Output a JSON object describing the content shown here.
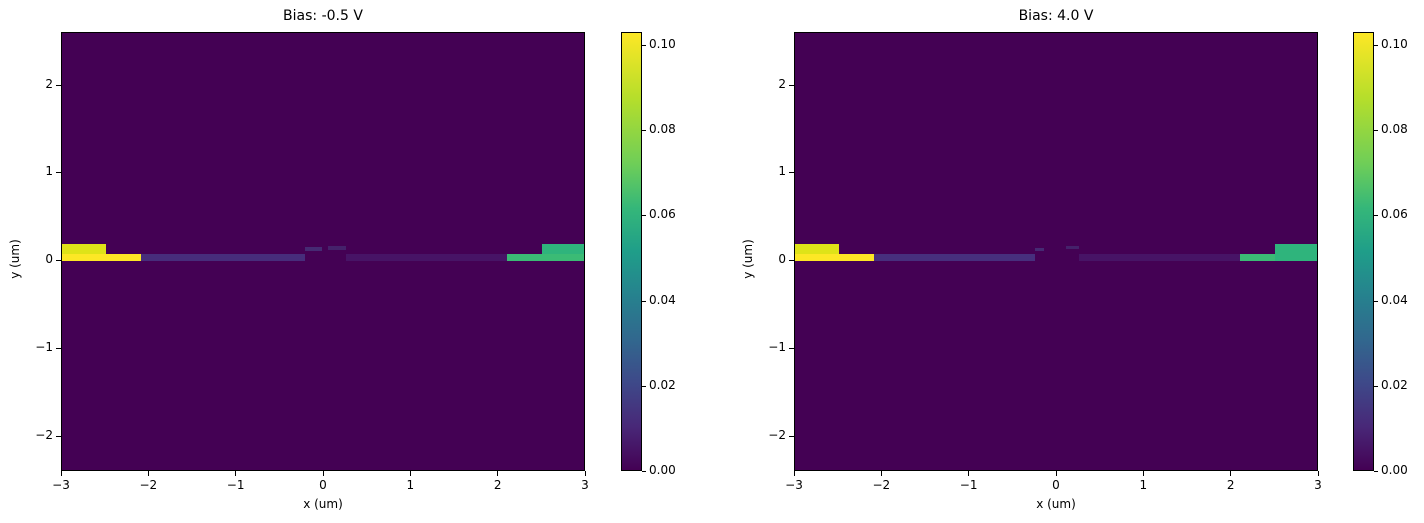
{
  "chart_data": [
    {
      "type": "heatmap",
      "title": "Bias: -0.5 V",
      "xlabel": "x (um)",
      "ylabel": "y (um)",
      "xlim": [
        -3,
        3
      ],
      "ylim": [
        -2.4,
        2.6
      ],
      "xticks": [
        "−3",
        "−2",
        "−1",
        "0",
        "1",
        "2",
        "3"
      ],
      "yticks": [
        "−2",
        "−1",
        "0",
        "1",
        "2"
      ],
      "colorbar": {
        "min": 0.0,
        "max": 0.103,
        "ticks": [
          "0.00",
          "0.02",
          "0.04",
          "0.06",
          "0.08",
          "0.10"
        ],
        "colormap": "viridis"
      },
      "regions": [
        {
          "name": "left-contact-top",
          "x": [
            -3.0,
            -2.5
          ],
          "y": [
            0.08,
            0.2
          ],
          "value": 0.098,
          "color": "#dfe318"
        },
        {
          "name": "left-contact-bottom",
          "x": [
            -3.0,
            -2.1
          ],
          "y": [
            0.0,
            0.08
          ],
          "value": 0.103,
          "color": "#fde725"
        },
        {
          "name": "slab-left",
          "x": [
            -2.1,
            -0.22
          ],
          "y": [
            0.0,
            0.08
          ],
          "value": 0.015,
          "color": "#472d7b"
        },
        {
          "name": "ridge-left-step",
          "x": [
            -0.22,
            -0.02
          ],
          "y": [
            0.12,
            0.16
          ],
          "value": 0.01,
          "color": "#462a73"
        },
        {
          "name": "ridge-right-step",
          "x": [
            0.05,
            0.25
          ],
          "y": [
            0.13,
            0.17
          ],
          "value": 0.008,
          "color": "#45226b"
        },
        {
          "name": "slab-right",
          "x": [
            0.25,
            2.1
          ],
          "y": [
            0.0,
            0.08
          ],
          "value": 0.008,
          "color": "#471466"
        },
        {
          "name": "right-contact-bottom",
          "x": [
            2.1,
            3.0
          ],
          "y": [
            0.0,
            0.08
          ],
          "value": 0.072,
          "color": "#3bbb75"
        },
        {
          "name": "right-contact-top",
          "x": [
            2.5,
            3.0
          ],
          "y": [
            0.08,
            0.2
          ],
          "value": 0.068,
          "color": "#2fb47c"
        }
      ],
      "background_value": 0.0
    },
    {
      "type": "heatmap",
      "title": "Bias: 4.0 V",
      "xlabel": "x (um)",
      "ylabel": "y (um)",
      "xlim": [
        -3,
        3
      ],
      "ylim": [
        -2.4,
        2.6
      ],
      "xticks": [
        "−3",
        "−2",
        "−1",
        "0",
        "1",
        "2",
        "3"
      ],
      "yticks": [
        "−2",
        "−1",
        "0",
        "1",
        "2"
      ],
      "colorbar": {
        "min": 0.0,
        "max": 0.103,
        "ticks": [
          "0.00",
          "0.02",
          "0.04",
          "0.06",
          "0.08",
          "0.10"
        ],
        "colormap": "viridis"
      },
      "regions": [
        {
          "name": "left-contact-top",
          "x": [
            -3.0,
            -2.5
          ],
          "y": [
            0.08,
            0.2
          ],
          "value": 0.098,
          "color": "#dfe318"
        },
        {
          "name": "left-contact-bottom",
          "x": [
            -3.0,
            -2.1
          ],
          "y": [
            0.0,
            0.08
          ],
          "value": 0.103,
          "color": "#fde725"
        },
        {
          "name": "slab-left",
          "x": [
            -2.1,
            -0.25
          ],
          "y": [
            0.0,
            0.08
          ],
          "value": 0.017,
          "color": "#472f7d"
        },
        {
          "name": "ridge-left-step",
          "x": [
            -0.25,
            -0.15
          ],
          "y": [
            0.12,
            0.15
          ],
          "value": 0.01,
          "color": "#462a73"
        },
        {
          "name": "ridge-right-step",
          "x": [
            0.1,
            0.25
          ],
          "y": [
            0.14,
            0.17
          ],
          "value": 0.008,
          "color": "#45226b"
        },
        {
          "name": "slab-right",
          "x": [
            0.25,
            2.1
          ],
          "y": [
            0.0,
            0.08
          ],
          "value": 0.008,
          "color": "#471466"
        },
        {
          "name": "right-contact-bottom",
          "x": [
            2.1,
            2.5
          ],
          "y": [
            0.0,
            0.08
          ],
          "value": 0.072,
          "color": "#3bbb75"
        },
        {
          "name": "right-contact-top",
          "x": [
            2.5,
            3.0
          ],
          "y": [
            0.0,
            0.2
          ],
          "value": 0.068,
          "color": "#2fb47c"
        }
      ],
      "background_value": 0.0
    }
  ]
}
